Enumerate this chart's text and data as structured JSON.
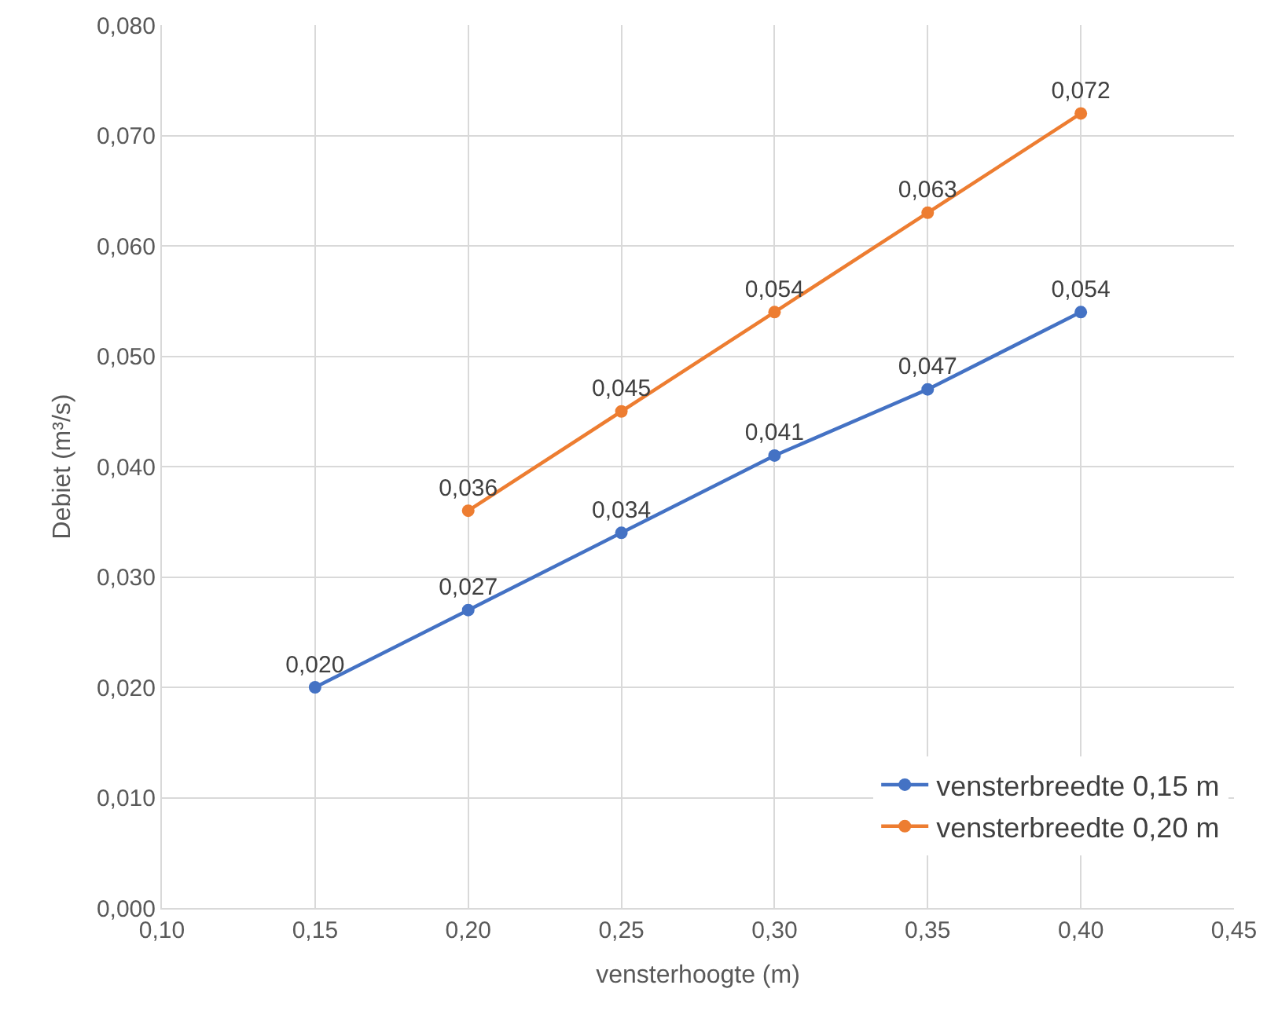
{
  "chart_data": {
    "type": "line",
    "xlabel": "vensterhoogte (m)",
    "ylabel": "Debiet (m³/s)",
    "series": [
      {
        "name": "vensterbreedte 0,15 m",
        "color": "#4472c4",
        "x": [
          0.15,
          0.2,
          0.25,
          0.3,
          0.35,
          0.4
        ],
        "values": [
          0.02,
          0.027,
          0.034,
          0.041,
          0.047,
          0.054
        ],
        "value_labels": [
          "0,020",
          "0,027",
          "0,034",
          "0,041",
          "0,047",
          "0,054"
        ]
      },
      {
        "name": "vensterbreedte 0,20 m",
        "color": "#ed7d31",
        "x": [
          0.2,
          0.25,
          0.3,
          0.35,
          0.4
        ],
        "values": [
          0.036,
          0.045,
          0.054,
          0.063,
          0.072
        ],
        "value_labels": [
          "0,036",
          "0,045",
          "0,054",
          "0,063",
          "0,072"
        ]
      }
    ],
    "xlim": [
      0.1,
      0.45
    ],
    "xticks": [
      {
        "value": 0.1,
        "label": "0,10"
      },
      {
        "value": 0.15,
        "label": "0,15"
      },
      {
        "value": 0.2,
        "label": "0,20"
      },
      {
        "value": 0.25,
        "label": "0,25"
      },
      {
        "value": 0.3,
        "label": "0,30"
      },
      {
        "value": 0.35,
        "label": "0,35"
      },
      {
        "value": 0.4,
        "label": "0,40"
      },
      {
        "value": 0.45,
        "label": "0,45"
      }
    ],
    "ylim": [
      0,
      0.08
    ],
    "yticks": [
      {
        "value": 0,
        "label": "0,000"
      },
      {
        "value": 0.01,
        "label": "0,010"
      },
      {
        "value": 0.02,
        "label": "0,020"
      },
      {
        "value": 0.03,
        "label": "0,030"
      },
      {
        "value": 0.04,
        "label": "0,040"
      },
      {
        "value": 0.05,
        "label": "0,050"
      },
      {
        "value": 0.06,
        "label": "0,060"
      },
      {
        "value": 0.07,
        "label": "0,070"
      },
      {
        "value": 0.08,
        "label": "0,080"
      }
    ],
    "grid": true,
    "legend": "bottom right",
    "marker": "circle",
    "line_style": "solid"
  }
}
